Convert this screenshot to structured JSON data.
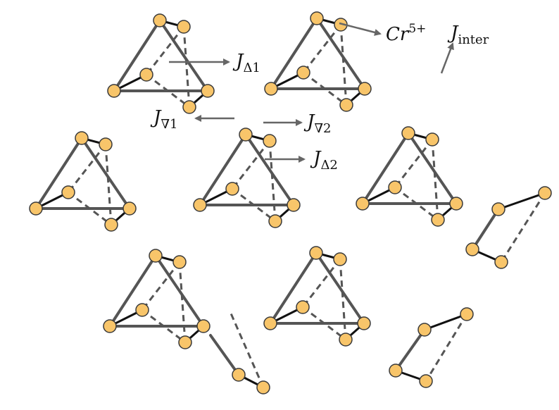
{
  "labels": {
    "cr": {
      "main": "Cr",
      "sup": "5+"
    },
    "j_inter": {
      "main": "J",
      "sub": "inter"
    },
    "j_up1": {
      "main": "J",
      "sub": "Δ1"
    },
    "j_down1": {
      "main": "J",
      "sub": "∇1"
    },
    "j_down2": {
      "main": "J",
      "sub": "∇2"
    },
    "j_up2": {
      "main": "J",
      "sub": "Δ2"
    }
  },
  "colors": {
    "atom_fill": "#F8C56A",
    "atom_stroke": "#3a3a3a",
    "bond": "#555555",
    "dimer": "#111111",
    "arrow": "#666666"
  }
}
